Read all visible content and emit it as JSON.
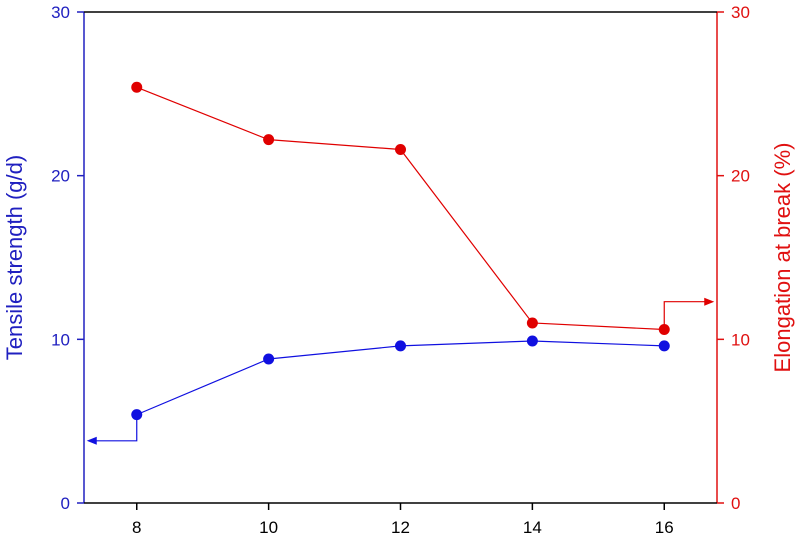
{
  "chart_data": {
    "type": "line",
    "title": "",
    "xlabel": "",
    "x": [
      8,
      10,
      12,
      14,
      16
    ],
    "xticks": [
      "8",
      "10",
      "12",
      "14",
      "16"
    ],
    "xlim": [
      7.2,
      16.8
    ],
    "y_left": {
      "label": "Tensile strength (g/d)",
      "ylim": [
        0,
        30
      ],
      "ticks": [
        "0",
        "10",
        "20",
        "30"
      ],
      "color": "#2020c0"
    },
    "y_right": {
      "label": "Elongation at break (%)",
      "ylim": [
        0,
        30
      ],
      "ticks": [
        "0",
        "10",
        "20",
        "30"
      ],
      "color": "#e01010"
    },
    "series": [
      {
        "axis": "left",
        "color": "#1010e0",
        "values": [
          5.4,
          8.8,
          9.6,
          9.9,
          9.6
        ]
      },
      {
        "axis": "right",
        "color": "#e00000",
        "values": [
          25.4,
          22.2,
          21.6,
          11.0,
          10.6
        ]
      }
    ],
    "axis_indicators": [
      {
        "series_index": 0,
        "direction": "left",
        "from_x": 8,
        "value": 3.8
      },
      {
        "series_index": 1,
        "direction": "right",
        "from_x": 16,
        "value": 12.3
      }
    ],
    "grid": false,
    "legend": "none"
  }
}
